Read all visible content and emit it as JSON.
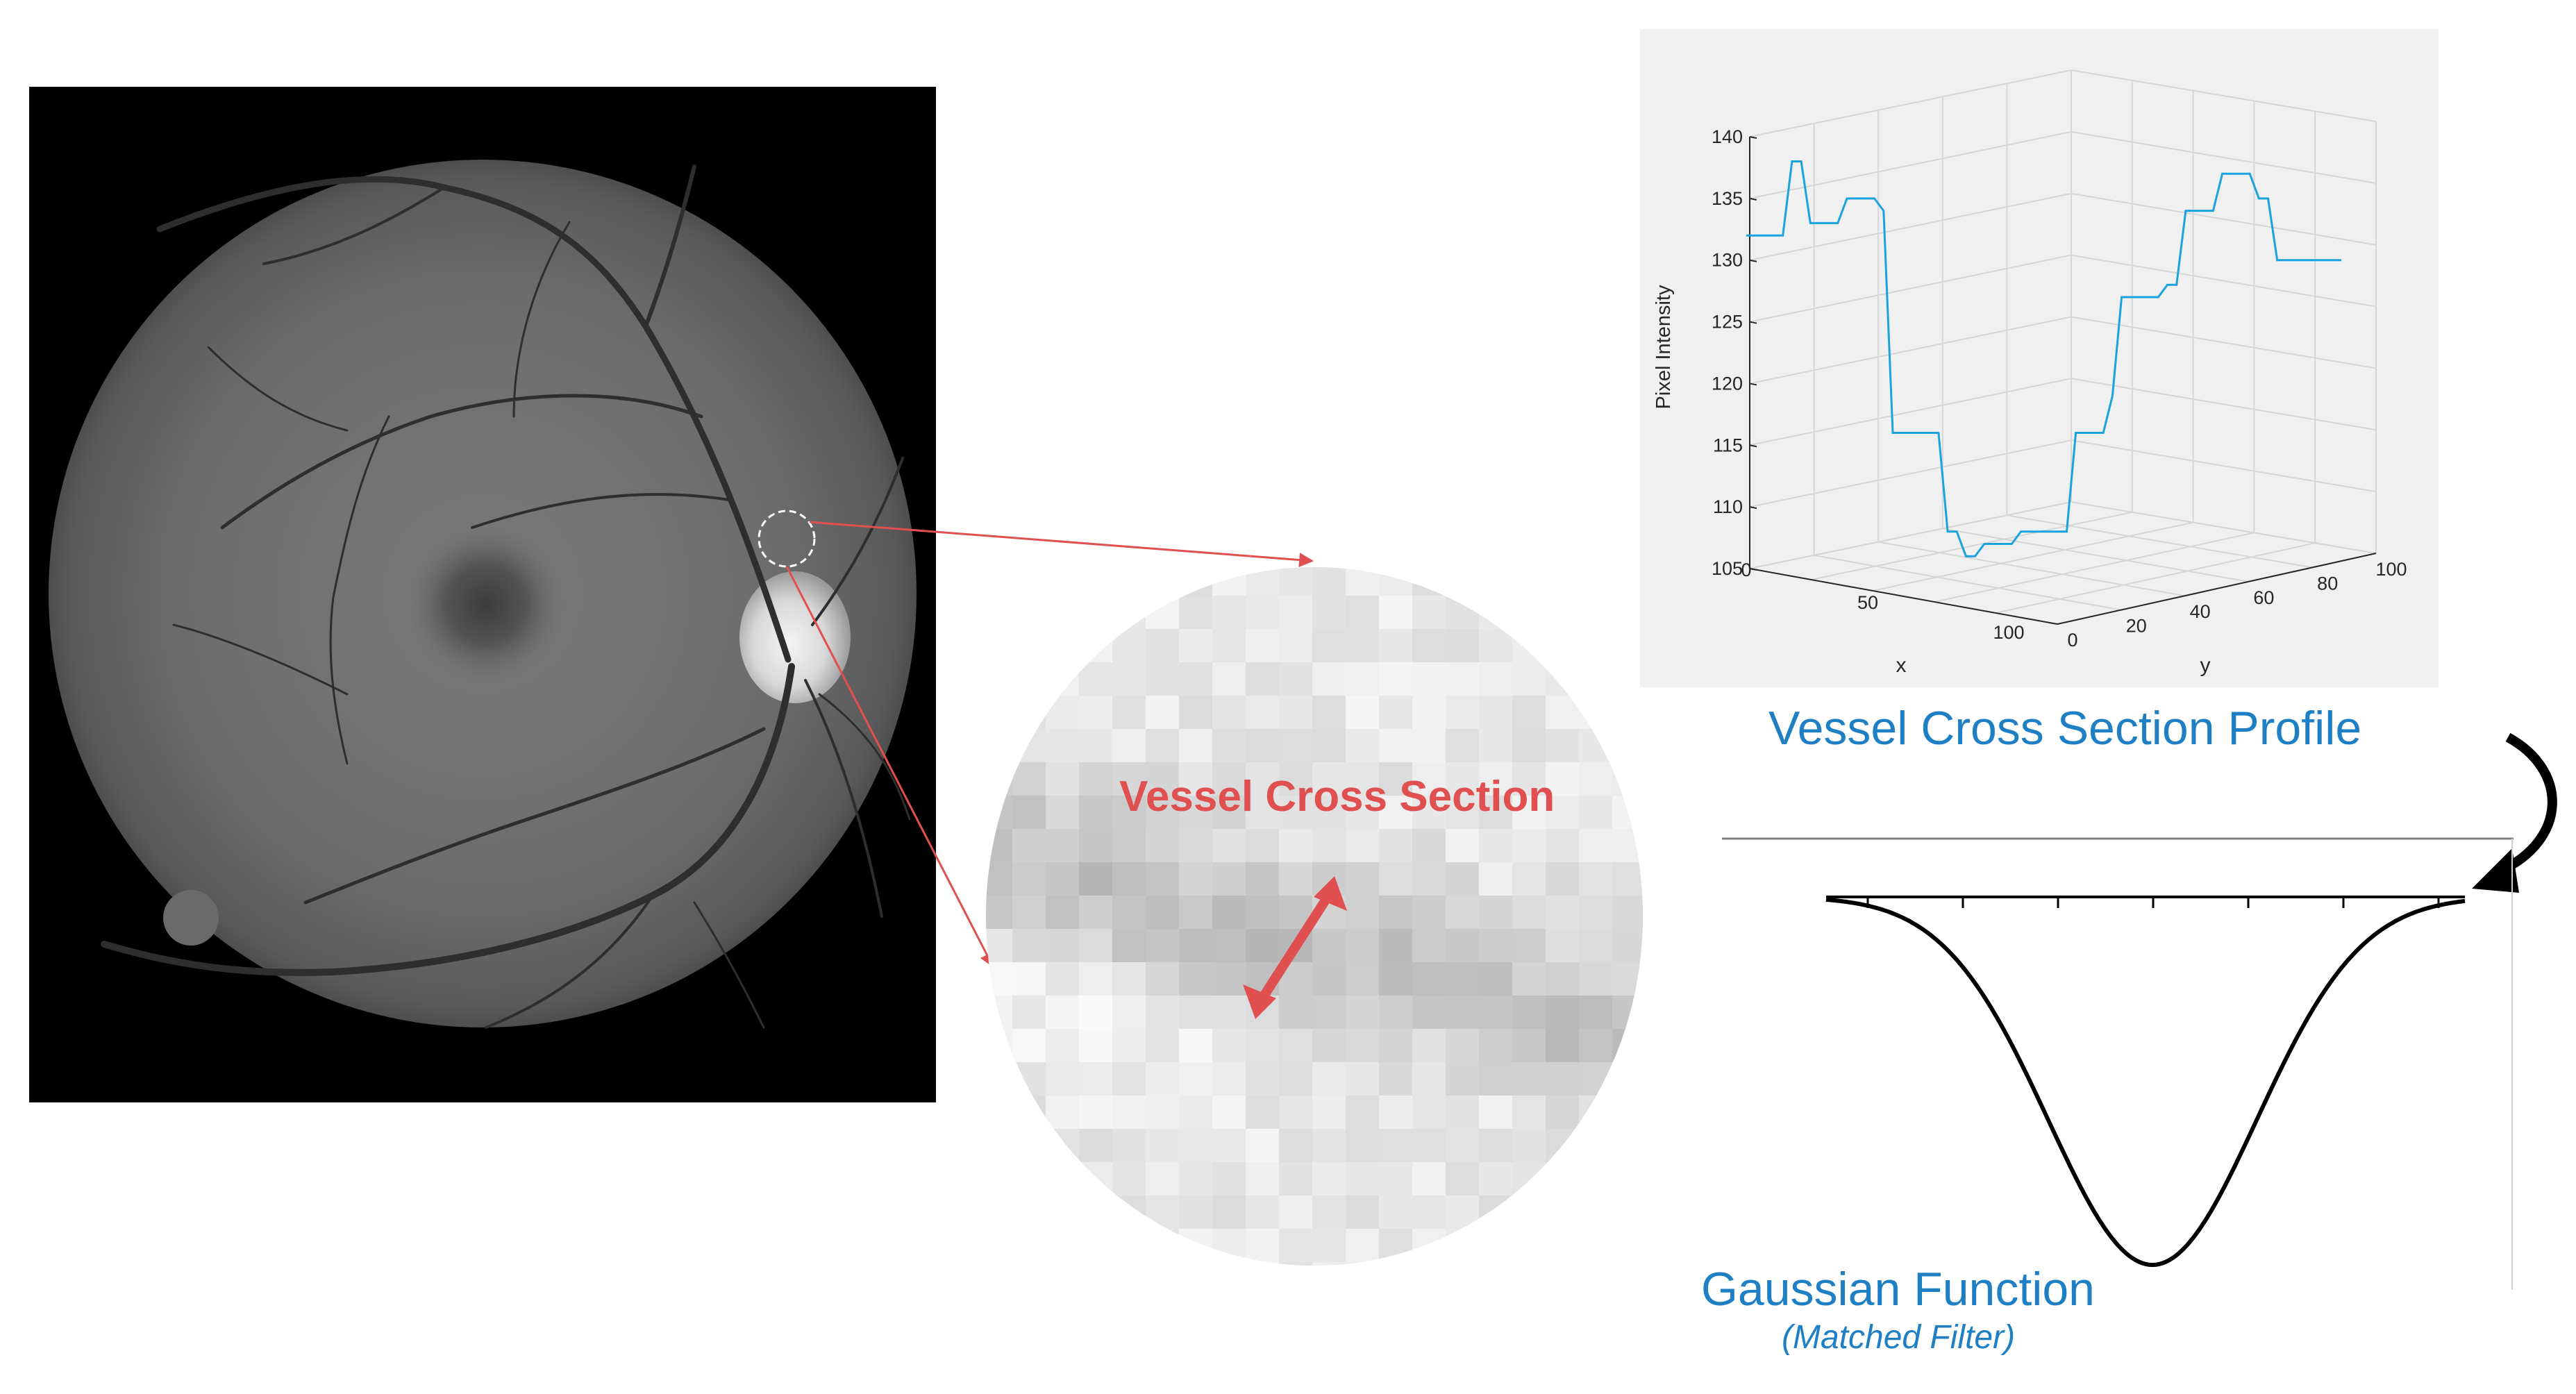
{
  "zoom_label": "Vessel Cross Section",
  "profile_caption": "Vessel Cross Section Profile",
  "gaussian_caption": "Gaussian Function",
  "gaussian_subcaption": "(Matched Filter)",
  "colors": {
    "accent_red": "#e05050",
    "caption_blue": "#1f7fc4",
    "profile_line": "#1aa3df"
  },
  "chart_data": {
    "type": "line",
    "title": "",
    "xlabel": "x",
    "ylabel": "Pixel Intensity",
    "zlabel": "y",
    "z_ticks": [
      "105",
      "110",
      "115",
      "120",
      "125",
      "130",
      "135",
      "140"
    ],
    "x_ticks": [
      "0",
      "50",
      "100"
    ],
    "y_ticks": [
      "0",
      "20",
      "40",
      "60",
      "80",
      "100"
    ],
    "zlim": [
      105,
      140
    ],
    "grid": true,
    "series": [
      {
        "values": [
          132,
          132,
          132,
          132,
          132,
          138,
          138,
          133,
          133,
          133,
          133,
          135,
          135,
          135,
          135,
          134,
          116,
          116,
          116,
          116,
          116,
          116,
          108,
          108,
          106,
          106,
          107,
          107,
          107,
          107,
          108,
          108,
          108,
          108,
          108,
          108,
          116,
          116,
          116,
          116,
          119,
          127,
          127,
          127,
          127,
          127,
          128,
          128,
          134,
          134,
          134,
          134,
          137,
          137,
          137,
          137,
          135,
          135,
          130,
          130,
          130,
          130,
          130,
          130,
          130,
          130
        ]
      }
    ]
  }
}
